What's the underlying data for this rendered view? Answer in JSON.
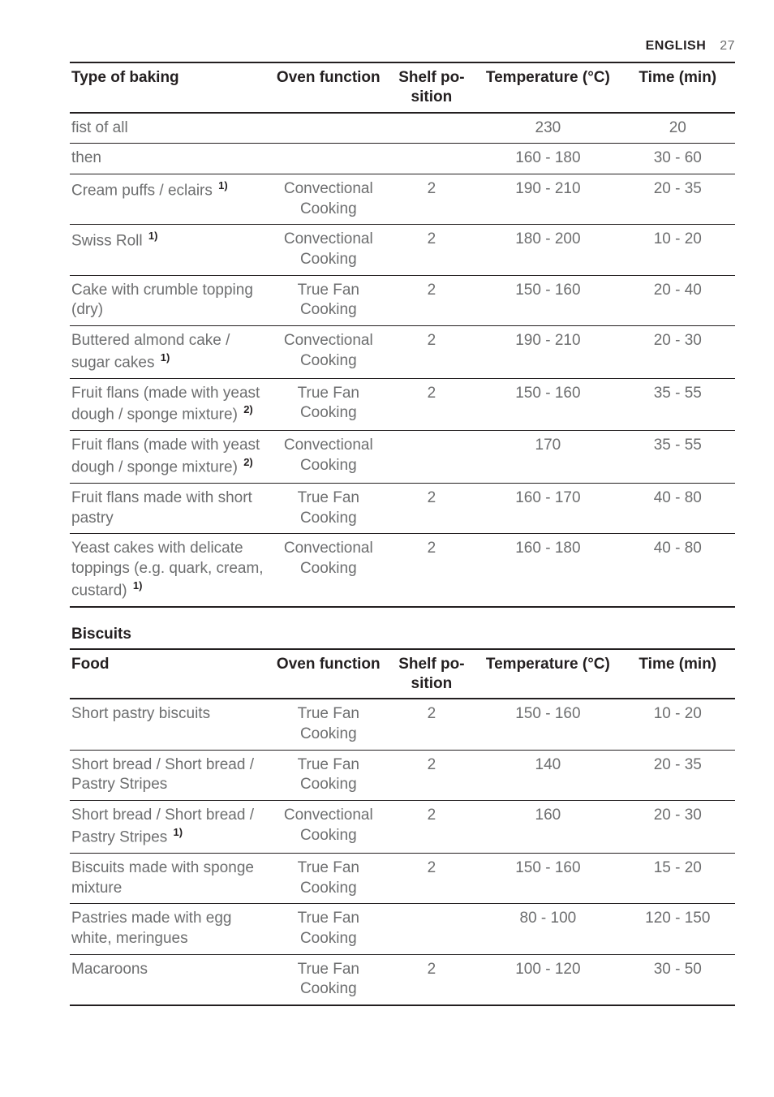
{
  "page_header": {
    "lang": "ENGLISH",
    "num": "27"
  },
  "table1": {
    "headers": {
      "c1": "Type of baking",
      "c2": "Oven func­tion",
      "c3": "Shelf po­sition",
      "c4": "Temperature (°C)",
      "c5": "Time (min)"
    },
    "rows": [
      {
        "name": "fist of all",
        "fn": "",
        "fun": "",
        "pos": "",
        "temp": "230",
        "time": "20"
      },
      {
        "name": "then",
        "fn": "",
        "fun": "",
        "pos": "",
        "temp": "160 - 180",
        "time": "30 - 60"
      },
      {
        "name": "Cream puffs / eclairs",
        "fn": "1)",
        "fun": "Convectional Cooking",
        "pos": "2",
        "temp": "190 - 210",
        "time": "20 - 35"
      },
      {
        "name": "Swiss Roll",
        "fn": "1)",
        "fun": "Convectional Cooking",
        "pos": "2",
        "temp": "180 - 200",
        "time": "10 - 20"
      },
      {
        "name": "Cake with crumble topping (dry)",
        "fn": "",
        "fun": "True Fan Cooking",
        "pos": "2",
        "temp": "150 - 160",
        "time": "20 - 40"
      },
      {
        "name": "Buttered almond cake / sugar cakes",
        "fn": "1)",
        "fun": "Convectional Cooking",
        "pos": "2",
        "temp": "190 - 210",
        "time": "20 - 30"
      },
      {
        "name": "Fruit flans (made with yeast dough / sponge mixture)",
        "fn": "2)",
        "fun": "True Fan Cooking",
        "pos": "2",
        "temp": "150 - 160",
        "time": "35 - 55"
      },
      {
        "name": "Fruit flans (made with yeast dough / sponge mixture)",
        "fn": "2)",
        "fun": "Convectional Cooking",
        "pos": "",
        "temp": "170",
        "time": "35 - 55"
      },
      {
        "name": "Fruit flans made with short pastry",
        "fn": "",
        "fun": "True Fan Cooking",
        "pos": "2",
        "temp": "160 - 170",
        "time": "40 - 80"
      },
      {
        "name": "Yeast cakes with deli­cate toppings (e.g. quark, cream, cus­tard)",
        "fn": "1)",
        "fun": "Convectional Cooking",
        "pos": "2",
        "temp": "160 - 180",
        "time": "40 - 80"
      }
    ]
  },
  "section2_title": "Biscuits",
  "table2": {
    "headers": {
      "c1": "Food",
      "c2": "Oven func­tion",
      "c3": "Shelf po­sition",
      "c4": "Temperature (°C)",
      "c5": "Time (min)"
    },
    "rows": [
      {
        "name": "Short pastry biscuits",
        "fn": "",
        "fun": "True Fan Cooking",
        "pos": "2",
        "temp": "150 - 160",
        "time": "10 - 20"
      },
      {
        "name": "Short bread / Short bread / Pastry Stripes",
        "fn": "",
        "fun": "True Fan Cooking",
        "pos": "2",
        "temp": "140",
        "time": "20 - 35"
      },
      {
        "name": "Short bread / Short bread / Pastry Stripes",
        "fn": "1)",
        "fun": "Convectional Cooking",
        "pos": "2",
        "temp": "160",
        "time": "20 - 30"
      },
      {
        "name": "Biscuits made with sponge mixture",
        "fn": "",
        "fun": "True Fan Cooking",
        "pos": "2",
        "temp": "150 - 160",
        "time": "15 - 20"
      },
      {
        "name": "Pastries made with egg white, merin­gues",
        "fn": "",
        "fun": "True Fan Cooking",
        "pos": "",
        "temp": "80 - 100",
        "time": "120 - 150"
      },
      {
        "name": "Macaroons",
        "fn": "",
        "fun": "True Fan Cooking",
        "pos": "2",
        "temp": "100 - 120",
        "time": "30 - 50"
      }
    ]
  }
}
